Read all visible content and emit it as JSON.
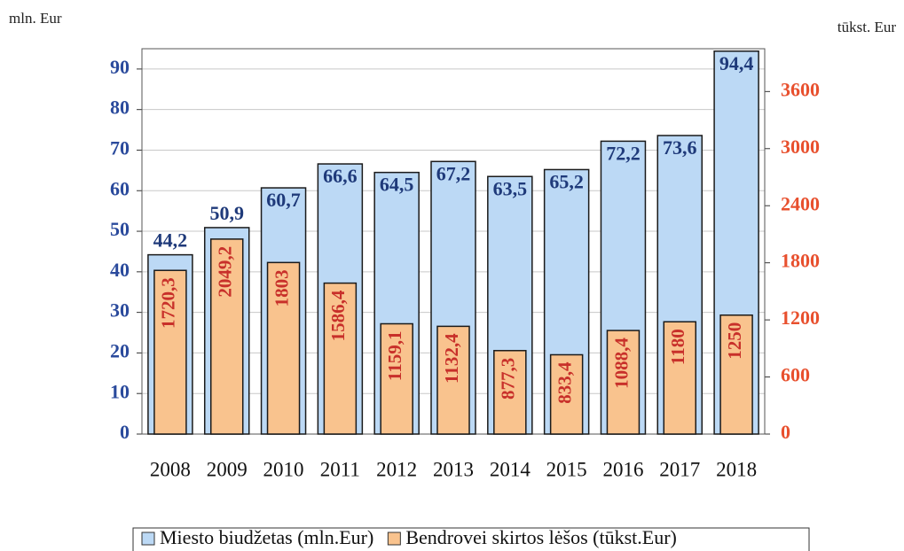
{
  "chart_data": {
    "type": "bar",
    "y_label": "mln. Eur",
    "y2_label": "tūkst. Eur",
    "categories": [
      "2008",
      "2009",
      "2010",
      "2011",
      "2012",
      "2013",
      "2014",
      "2015",
      "2016",
      "2017",
      "2018"
    ],
    "series": [
      {
        "name": "Miesto biudžetas (mln.Eur)",
        "color": "#bcd9f5",
        "label_color": "#1f3a7a",
        "values": [
          44.2,
          50.9,
          60.7,
          66.6,
          64.5,
          67.2,
          63.5,
          65.2,
          72.2,
          73.6,
          94.4
        ],
        "value_labels": [
          "44,2",
          "50,9",
          "60,7",
          "66,6",
          "64,5",
          "67,2",
          "63,5",
          "65,2",
          "72,2",
          "73,6",
          "94,4"
        ]
      },
      {
        "name": "Bendrovei skirtos lėšos (tūkst.Eur)",
        "color": "#f9c38e",
        "label_color": "#c8302a",
        "axis": "y2",
        "values": [
          1720.3,
          2049.2,
          1803,
          1586.4,
          1159.1,
          1132.4,
          877.3,
          833.4,
          1088.4,
          1180,
          1250
        ],
        "value_labels": [
          "1720,3",
          "2049,2",
          "1803",
          "1586,4",
          "1159,1",
          "1132,4",
          "877,3",
          "833,4",
          "1088,4",
          "1180",
          "1250"
        ]
      }
    ],
    "ylim": [
      0,
      95
    ],
    "yticks": [
      0,
      10,
      20,
      30,
      40,
      50,
      60,
      70,
      80,
      90
    ],
    "y2lim": [
      0,
      4050
    ],
    "y2ticks": [
      0,
      600,
      1200,
      1800,
      2400,
      3000,
      3600
    ],
    "grid": true,
    "legend": "bottom"
  }
}
